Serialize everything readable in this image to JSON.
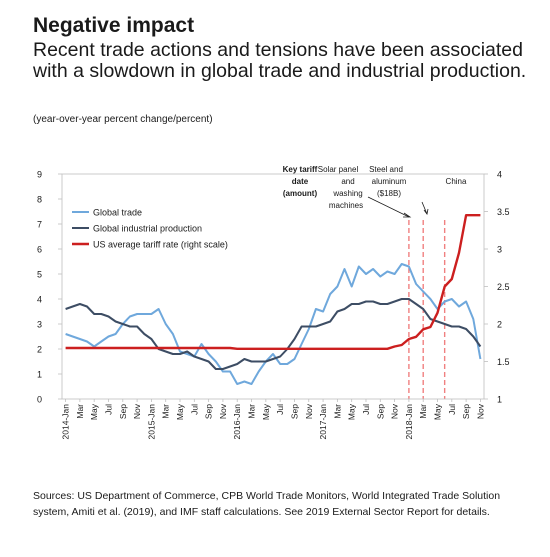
{
  "header": {
    "title": "Negative impact",
    "subtitle": "Recent trade actions and tensions have been associated with a slowdown in global trade and industrial production.",
    "units": "(year-over-year percent change/percent)"
  },
  "footer": {
    "source": "Sources: US Department of Commerce, CPB World Trade Monitors, World Integrated Trade Solution system, Amiti et al. (2019), and IMF staff calculations. See 2019 External Sector Report for details."
  },
  "colors": {
    "global_trade": "#6fa8dc",
    "industrial_production": "#3d4d64",
    "tariff": "#cc1f1f",
    "annotation_line": "#f08080"
  },
  "chart_data": {
    "type": "line",
    "title": "Negative impact",
    "ylim_left": [
      0,
      9
    ],
    "yticks_left": [
      "0",
      "1",
      "2",
      "3",
      "4",
      "5",
      "6",
      "7",
      "8",
      "9"
    ],
    "ylim_right": [
      1,
      4
    ],
    "yticks_right": [
      "1",
      "1.5",
      "2",
      "2.5",
      "3",
      "3.5",
      "4"
    ],
    "x_tick_labels": [
      "2014-Jan",
      "Mar",
      "May",
      "Jul",
      "Sep",
      "Nov",
      "2015-Jan",
      "Mar",
      "May",
      "Jul",
      "Sep",
      "Nov",
      "2016-Jan",
      "Mar",
      "May",
      "Jul",
      "Sep",
      "Nov",
      "2017-Jan",
      "Mar",
      "May",
      "Jul",
      "Sep",
      "Nov",
      "2018-Jan",
      "Mar",
      "May",
      "Jul",
      "Sep",
      "Nov"
    ],
    "x_start": "2014-01",
    "grid": false,
    "legend_position": "top-left",
    "series": [
      {
        "name": "Global trade",
        "axis": "left",
        "color": "#6fa8dc",
        "values": [
          2.6,
          2.5,
          2.4,
          2.3,
          2.1,
          2.3,
          2.5,
          2.6,
          3.0,
          3.3,
          3.4,
          3.4,
          3.4,
          3.6,
          3.0,
          2.6,
          1.9,
          1.8,
          1.7,
          2.2,
          1.8,
          1.5,
          1.1,
          1.1,
          0.6,
          0.7,
          0.6,
          1.1,
          1.5,
          1.8,
          1.4,
          1.4,
          1.6,
          2.2,
          2.8,
          3.6,
          3.5,
          4.2,
          4.5,
          5.2,
          4.5,
          5.3,
          5.0,
          5.2,
          4.9,
          5.1,
          5.0,
          5.4,
          5.3,
          4.6,
          4.3,
          4.0,
          3.6,
          3.9,
          4.0,
          3.7,
          3.9,
          3.2,
          1.6
        ]
      },
      {
        "name": "Global industrial production",
        "axis": "left",
        "color": "#3d4d64",
        "values": [
          3.6,
          3.7,
          3.8,
          3.7,
          3.4,
          3.4,
          3.3,
          3.1,
          3.0,
          2.9,
          2.9,
          2.6,
          2.4,
          2.0,
          1.9,
          1.8,
          1.8,
          1.9,
          1.7,
          1.6,
          1.5,
          1.2,
          1.2,
          1.3,
          1.4,
          1.6,
          1.5,
          1.5,
          1.5,
          1.6,
          1.7,
          2.0,
          2.4,
          2.9,
          2.9,
          2.9,
          3.0,
          3.1,
          3.5,
          3.6,
          3.8,
          3.8,
          3.9,
          3.9,
          3.8,
          3.8,
          3.9,
          4.0,
          4.0,
          3.8,
          3.6,
          3.2,
          3.1,
          3.0,
          2.9,
          2.9,
          2.8,
          2.5,
          2.1
        ]
      },
      {
        "name": "US average tariff rate (right scale)",
        "axis": "right",
        "color": "#cc1f1f",
        "values": [
          1.68,
          1.68,
          1.68,
          1.68,
          1.68,
          1.68,
          1.68,
          1.68,
          1.68,
          1.68,
          1.68,
          1.68,
          1.68,
          1.68,
          1.68,
          1.68,
          1.68,
          1.68,
          1.68,
          1.68,
          1.68,
          1.68,
          1.68,
          1.68,
          1.67,
          1.67,
          1.67,
          1.67,
          1.67,
          1.67,
          1.67,
          1.67,
          1.67,
          1.67,
          1.67,
          1.67,
          1.67,
          1.67,
          1.67,
          1.67,
          1.67,
          1.67,
          1.67,
          1.67,
          1.67,
          1.67,
          1.7,
          1.72,
          1.8,
          1.83,
          1.93,
          1.96,
          2.15,
          2.5,
          2.6,
          2.95,
          3.45,
          3.45,
          3.45
        ]
      }
    ],
    "annotations": {
      "key_tariff_header": "Key tariff date (amount)",
      "events": [
        {
          "label": "Solar panel and washing machines",
          "date": "2018-01"
        },
        {
          "label": "Steel and aluminum ($18B)",
          "date": "2018-03"
        },
        {
          "label": "China",
          "date": "2018-06"
        }
      ]
    }
  }
}
